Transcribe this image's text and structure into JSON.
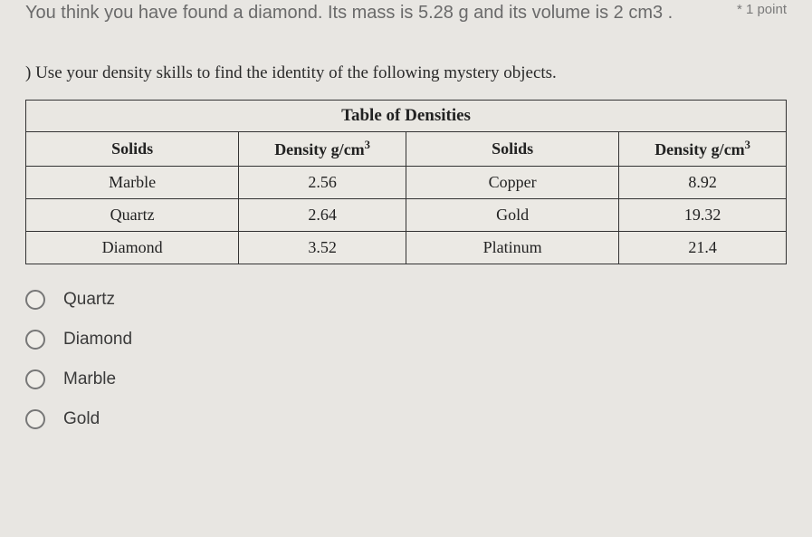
{
  "question": {
    "text": "You think you have found a diamond. Its mass is 5.28 g and its volume is 2 cm3 .",
    "points_prefix": "*",
    "points": "1 point"
  },
  "instruction": ") Use your density skills to find the identity of the following mystery objects.",
  "table": {
    "title": "Table of Densities",
    "headers": {
      "solids": "Solids",
      "density_prefix": "Density g/cm"
    },
    "rows": [
      {
        "s1": "Marble",
        "d1": "2.56",
        "s2": "Copper",
        "d2": "8.92"
      },
      {
        "s1": "Quartz",
        "d1": "2.64",
        "s2": "Gold",
        "d2": "19.32"
      },
      {
        "s1": "Diamond",
        "d1": "3.52",
        "s2": "Platinum",
        "d2": "21.4"
      }
    ],
    "col_widths": [
      "28%",
      "22%",
      "28%",
      "22%"
    ],
    "border_color": "#333333",
    "bg_color": "#ebe9e4"
  },
  "options": [
    {
      "label": "Quartz"
    },
    {
      "label": "Diamond"
    },
    {
      "label": "Marble"
    },
    {
      "label": "Gold"
    }
  ]
}
